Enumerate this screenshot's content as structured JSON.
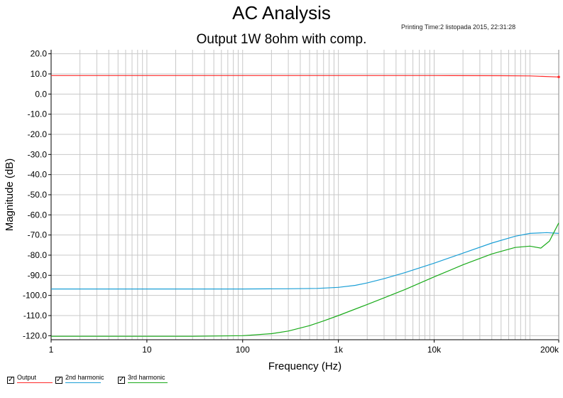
{
  "header": {
    "title": "AC Analysis",
    "subtitle": "Output 1W 8ohm with comp.",
    "printing_time": "Printing Time:2 listopada 2015, 22:31:28"
  },
  "legend": [
    {
      "label": "Output",
      "color": "#ff2a2a",
      "checked": true
    },
    {
      "label": "2nd harmonic",
      "color": "#1b9fd6",
      "checked": true
    },
    {
      "label": "3rd harmonic",
      "color": "#1aab1a",
      "checked": true
    }
  ],
  "chart_data": {
    "type": "line",
    "xscale": "log",
    "xlim": [
      1,
      200000
    ],
    "ylim": [
      -122,
      22
    ],
    "xlabel": "Frequency (Hz)",
    "ylabel": "Magnitude (dB)",
    "xticks": [
      {
        "v": 1,
        "label": "1"
      },
      {
        "v": 10,
        "label": "10"
      },
      {
        "v": 100,
        "label": "100"
      },
      {
        "v": 1000,
        "label": "1k"
      },
      {
        "v": 10000,
        "label": "10k"
      },
      {
        "v": 200000,
        "label": "200k"
      }
    ],
    "yticks": [
      {
        "v": 20,
        "label": "20.0"
      },
      {
        "v": 10,
        "label": "10.0"
      },
      {
        "v": 0,
        "label": "0.0"
      },
      {
        "v": -10,
        "label": "-10.0"
      },
      {
        "v": -20,
        "label": "-20.0"
      },
      {
        "v": -30,
        "label": "-30.0"
      },
      {
        "v": -40,
        "label": "-40.0"
      },
      {
        "v": -50,
        "label": "-50.0"
      },
      {
        "v": -60,
        "label": "-60.0"
      },
      {
        "v": -70,
        "label": "-70.0"
      },
      {
        "v": -80,
        "label": "-80.0"
      },
      {
        "v": -90,
        "label": "-90.0"
      },
      {
        "v": -100,
        "label": "-100.0"
      },
      {
        "v": -110,
        "label": "-110.0"
      },
      {
        "v": -120,
        "label": "-120.0"
      }
    ],
    "grid": true,
    "legend_position": "bottom-left",
    "series": [
      {
        "name": "Output",
        "color": "#ff2a2a",
        "x": [
          1,
          10,
          100,
          1000,
          10000,
          50000,
          100000,
          200000
        ],
        "y": [
          9.2,
          9.2,
          9.2,
          9.2,
          9.2,
          9.1,
          9.0,
          8.5
        ]
      },
      {
        "name": "2nd harmonic",
        "color": "#1b9fd6",
        "x": [
          1,
          10,
          100,
          300,
          600,
          1000,
          1500,
          2000,
          3000,
          5000,
          10000,
          20000,
          40000,
          70000,
          100000,
          150000,
          200000
        ],
        "y": [
          -96.8,
          -96.8,
          -96.8,
          -96.7,
          -96.5,
          -96.0,
          -95.0,
          -93.8,
          -91.7,
          -88.6,
          -84.0,
          -79.0,
          -74.0,
          -70.6,
          -69.2,
          -68.8,
          -69.2
        ]
      },
      {
        "name": "3rd harmonic",
        "color": "#1aab1a",
        "x": [
          1,
          10,
          30,
          100,
          200,
          300,
          500,
          700,
          1000,
          2000,
          3000,
          5000,
          10000,
          20000,
          40000,
          70000,
          100000,
          130000,
          160000,
          200000
        ],
        "y": [
          -120.3,
          -120.3,
          -120.3,
          -120.0,
          -119.0,
          -117.7,
          -115.0,
          -112.7,
          -110.0,
          -104.5,
          -101.2,
          -97.0,
          -90.8,
          -84.8,
          -79.4,
          -76.2,
          -75.5,
          -76.5,
          -73.0,
          -64.0
        ]
      }
    ]
  }
}
